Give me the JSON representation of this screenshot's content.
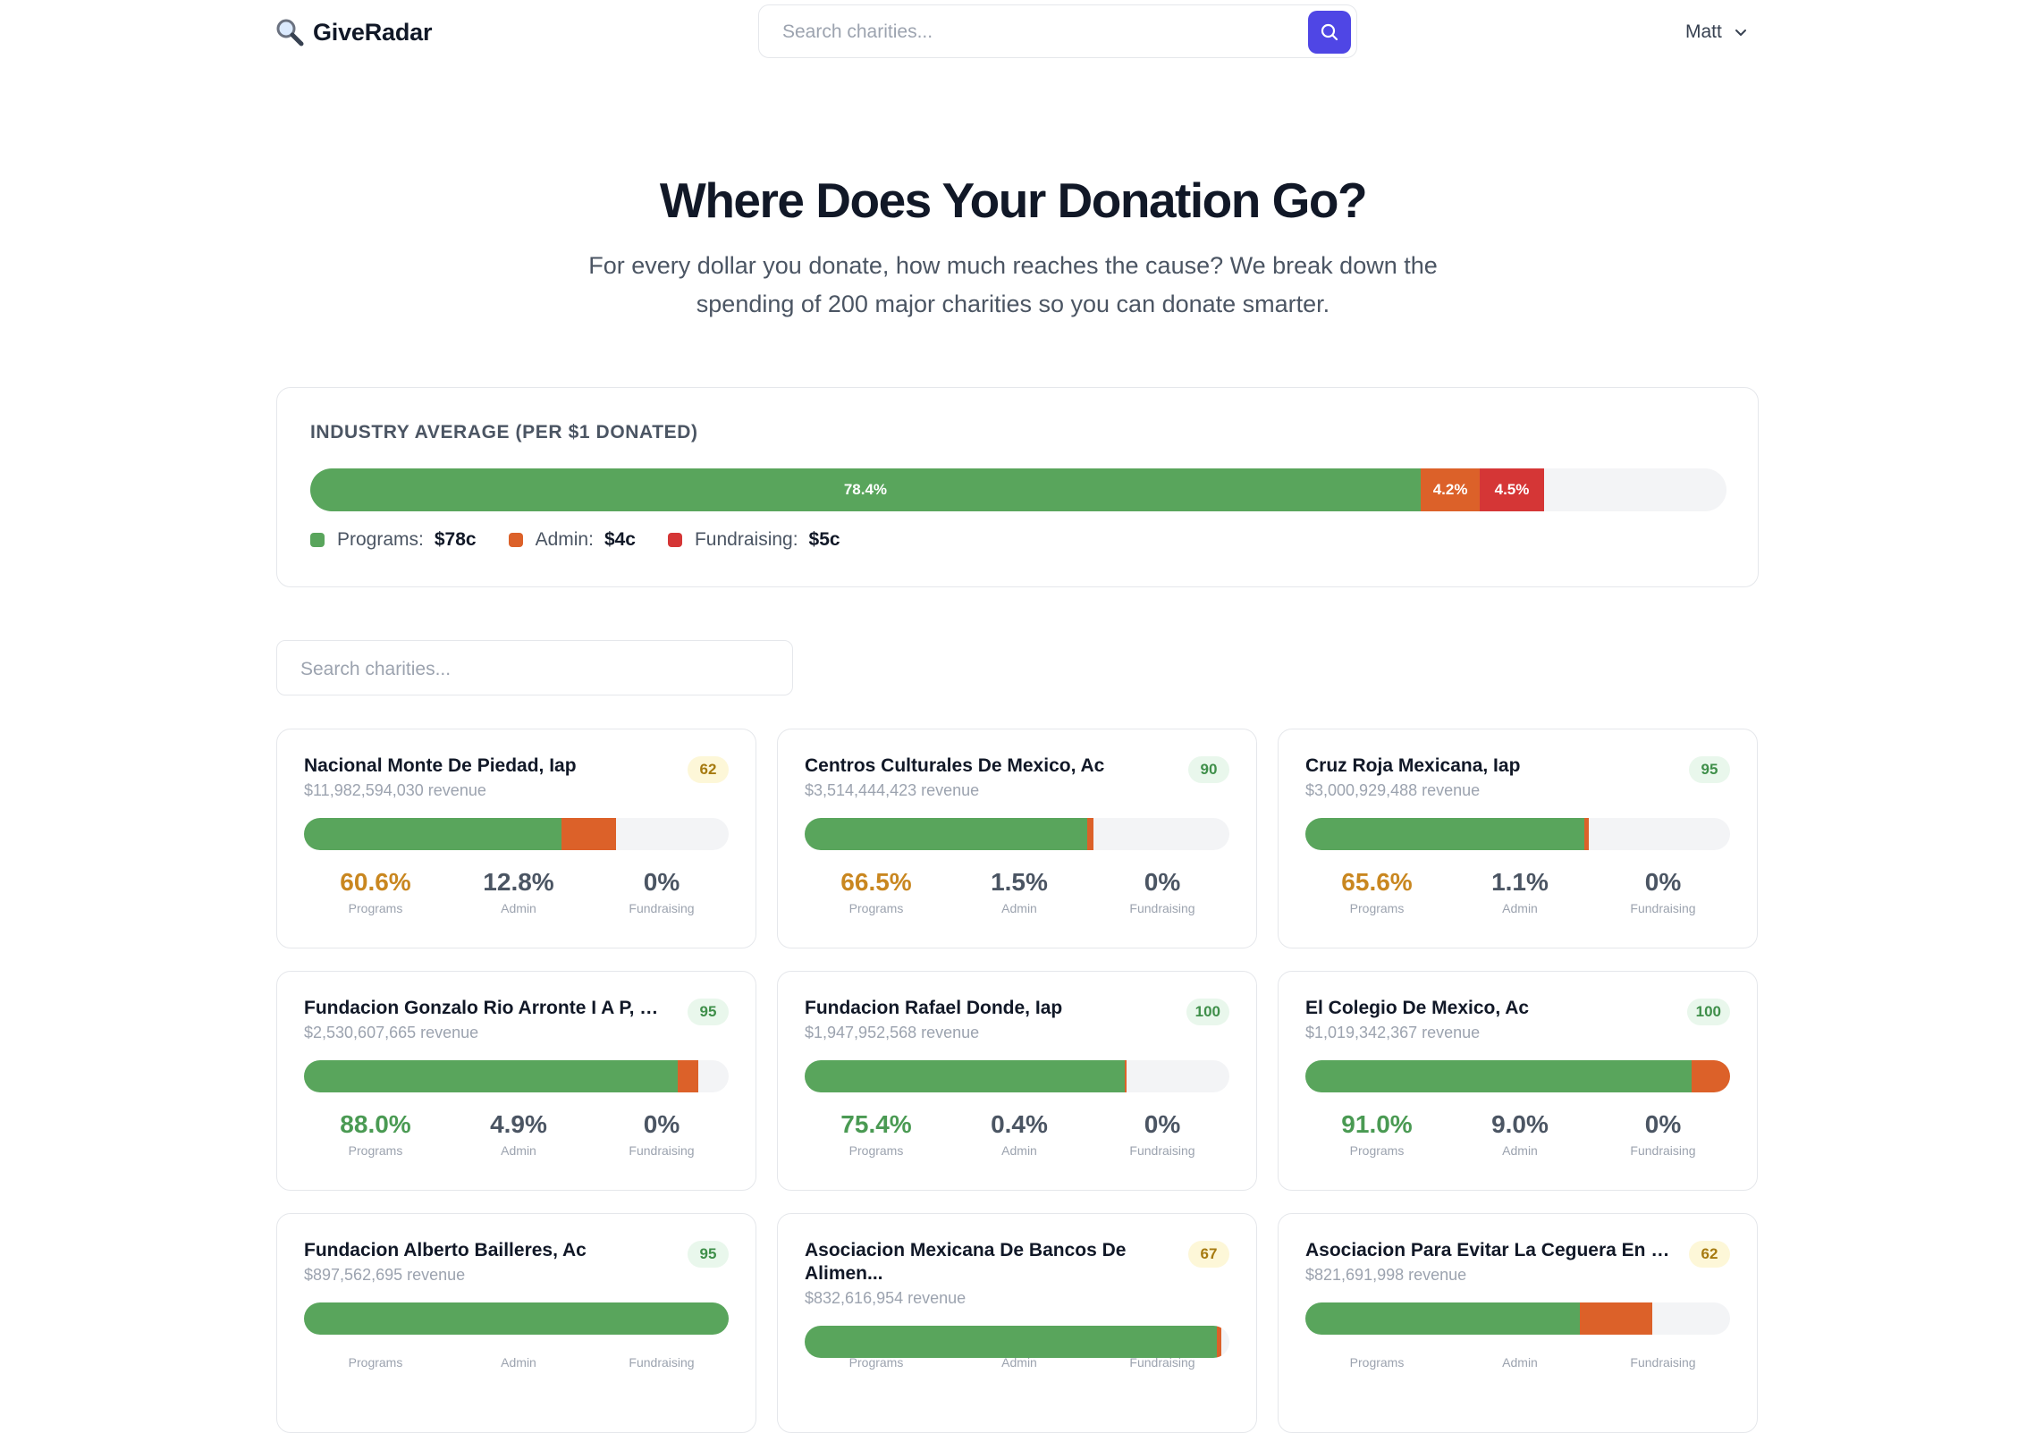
{
  "header": {
    "logo_text": "GiveRadar",
    "search_placeholder": "Search charities...",
    "user_name": "Matt"
  },
  "hero": {
    "title": "Where Does Your Donation Go?",
    "subtitle": "For every dollar you donate, how much reaches the cause? We break down the spending of 200 major charities so you can donate smarter."
  },
  "industry_average": {
    "title": "INDUSTRY AVERAGE (PER $1 DONATED)",
    "programs_pct": 78.4,
    "admin_pct": 4.2,
    "fundraising_pct": 4.5,
    "programs_label": "78.4%",
    "admin_label": "4.2%",
    "fundraising_label": "4.5%",
    "legend": [
      {
        "name": "Programs:",
        "value": "$78c",
        "color": "#59a55c"
      },
      {
        "name": "Admin:",
        "value": "$4c",
        "color": "#dc6129"
      },
      {
        "name": "Fundraising:",
        "value": "$5c",
        "color": "#d53636"
      }
    ]
  },
  "list_search_placeholder": "Search charities...",
  "labels": {
    "programs": "Programs",
    "admin": "Admin",
    "fundraising": "Fundraising"
  },
  "charities": [
    {
      "name": "Nacional Monte De Piedad, Iap",
      "revenue": "$11,982,594,030 revenue",
      "score": "62",
      "score_level": "mid",
      "programs": 60.6,
      "admin": 12.8,
      "fundraising": 0,
      "programs_label": "60.6%",
      "admin_label": "12.8%",
      "fundraising_label": "0%",
      "programs_tone": "amber"
    },
    {
      "name": "Centros Culturales De Mexico, Ac",
      "revenue": "$3,514,444,423 revenue",
      "score": "90",
      "score_level": "good",
      "programs": 66.5,
      "admin": 1.5,
      "fundraising": 0,
      "programs_label": "66.5%",
      "admin_label": "1.5%",
      "fundraising_label": "0%",
      "programs_tone": "amber"
    },
    {
      "name": "Cruz Roja Mexicana, Iap",
      "revenue": "$3,000,929,488 revenue",
      "score": "95",
      "score_level": "good",
      "programs": 65.6,
      "admin": 1.1,
      "fundraising": 0,
      "programs_label": "65.6%",
      "admin_label": "1.1%",
      "fundraising_label": "0%",
      "programs_tone": "amber"
    },
    {
      "name": "Fundacion Gonzalo Rio Arronte I A P, Si...",
      "revenue": "$2,530,607,665 revenue",
      "score": "95",
      "score_level": "good",
      "programs": 88.0,
      "admin": 4.9,
      "fundraising": 0,
      "programs_label": "88.0%",
      "admin_label": "4.9%",
      "fundraising_label": "0%",
      "programs_tone": "green"
    },
    {
      "name": "Fundacion Rafael Donde, Iap",
      "revenue": "$1,947,952,568 revenue",
      "score": "100",
      "score_level": "good",
      "programs": 75.4,
      "admin": 0.4,
      "fundraising": 0,
      "programs_label": "75.4%",
      "admin_label": "0.4%",
      "fundraising_label": "0%",
      "programs_tone": "green"
    },
    {
      "name": "El Colegio De Mexico, Ac",
      "revenue": "$1,019,342,367 revenue",
      "score": "100",
      "score_level": "good",
      "programs": 91.0,
      "admin": 9.0,
      "fundraising": 0,
      "programs_label": "91.0%",
      "admin_label": "9.0%",
      "fundraising_label": "0%",
      "programs_tone": "green"
    },
    {
      "name": "Fundacion Alberto Bailleres, Ac",
      "revenue": "$897,562,695 revenue",
      "score": "95",
      "score_level": "good",
      "programs": 100,
      "admin": 0,
      "fundraising": 0,
      "programs_label": "",
      "admin_label": "",
      "fundraising_label": "",
      "programs_tone": "green"
    },
    {
      "name": "Asociacion Mexicana De Bancos De Alimen...",
      "revenue": "$832,616,954 revenue",
      "score": "67",
      "score_level": "mid",
      "two_line": true,
      "programs": 97,
      "admin": 1,
      "fundraising": 0,
      "programs_label": "",
      "admin_label": "",
      "fundraising_label": "",
      "programs_tone": "green"
    },
    {
      "name": "Asociacion Para Evitar La Ceguera En Me...",
      "revenue": "$821,691,998 revenue",
      "score": "62",
      "score_level": "mid",
      "programs": 64.6,
      "admin": 17.1,
      "fundraising": 0,
      "programs_label": "",
      "admin_label": "",
      "fundraising_label": "",
      "programs_tone": "amber"
    }
  ]
}
